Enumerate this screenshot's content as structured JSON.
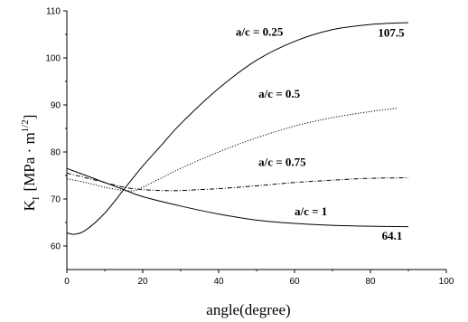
{
  "chart_data": {
    "type": "line",
    "xlabel": "angle(degree)",
    "ylabel_main": "K",
    "ylabel_sub": "I",
    "ylabel_unit": "[MPa · m",
    "ylabel_exp": "1/2",
    "ylabel_close": "]",
    "xlim": [
      0,
      100
    ],
    "ylim": [
      55,
      110
    ],
    "xticks": [
      0,
      20,
      40,
      60,
      80,
      100
    ],
    "yticks": [
      60,
      70,
      80,
      90,
      100,
      110
    ],
    "series": [
      {
        "name": "a/c = 0.25",
        "style": "solid",
        "x": [
          0,
          2,
          5,
          10,
          15,
          20,
          25,
          30,
          40,
          50,
          60,
          70,
          80,
          90
        ],
        "y": [
          62.8,
          62.5,
          63.4,
          67,
          72,
          77,
          81.5,
          86,
          93.5,
          99.5,
          103.5,
          106,
          107.1,
          107.5
        ]
      },
      {
        "name": "a/c = 0.5",
        "style": "dotted",
        "x": [
          0,
          5,
          10,
          15,
          18,
          20,
          25,
          30,
          40,
          50,
          60,
          70,
          80,
          87
        ],
        "y": [
          74.3,
          73.5,
          72.5,
          71.8,
          71.8,
          72.5,
          74.5,
          76.5,
          80,
          83,
          85.5,
          87.3,
          88.6,
          89.3
        ]
      },
      {
        "name": "a/c = 0.75",
        "style": "dash-dot",
        "x": [
          0,
          5,
          10,
          15,
          20,
          25,
          30,
          40,
          50,
          60,
          70,
          80,
          90
        ],
        "y": [
          75.5,
          74.5,
          73.5,
          72.5,
          72.0,
          71.8,
          71.8,
          72.2,
          72.8,
          73.5,
          74.0,
          74.4,
          74.5
        ]
      },
      {
        "name": "a/c = 1",
        "style": "solid",
        "x": [
          0,
          5,
          10,
          15,
          20,
          30,
          40,
          50,
          60,
          70,
          80,
          90
        ],
        "y": [
          76.5,
          75,
          73.5,
          72,
          70.5,
          68.5,
          66.8,
          65.5,
          64.8,
          64.4,
          64.2,
          64.1
        ]
      }
    ],
    "annotations": [
      {
        "text": "a/c = 0.25",
        "x": 44.5,
        "y": 104.7,
        "anchor": "start"
      },
      {
        "text": "107.5",
        "x": 82,
        "y": 104.5,
        "anchor": "start"
      },
      {
        "text": "a/c = 0.5",
        "x": 50.5,
        "y": 91.5,
        "anchor": "start"
      },
      {
        "text": "a/c = 0.75",
        "x": 50.5,
        "y": 77.0,
        "anchor": "start"
      },
      {
        "text": "a/c = 1",
        "x": 60,
        "y": 66.5,
        "anchor": "start"
      },
      {
        "text": "64.1",
        "x": 83,
        "y": 61.3,
        "anchor": "start"
      }
    ],
    "grid": false,
    "legend": "none"
  }
}
